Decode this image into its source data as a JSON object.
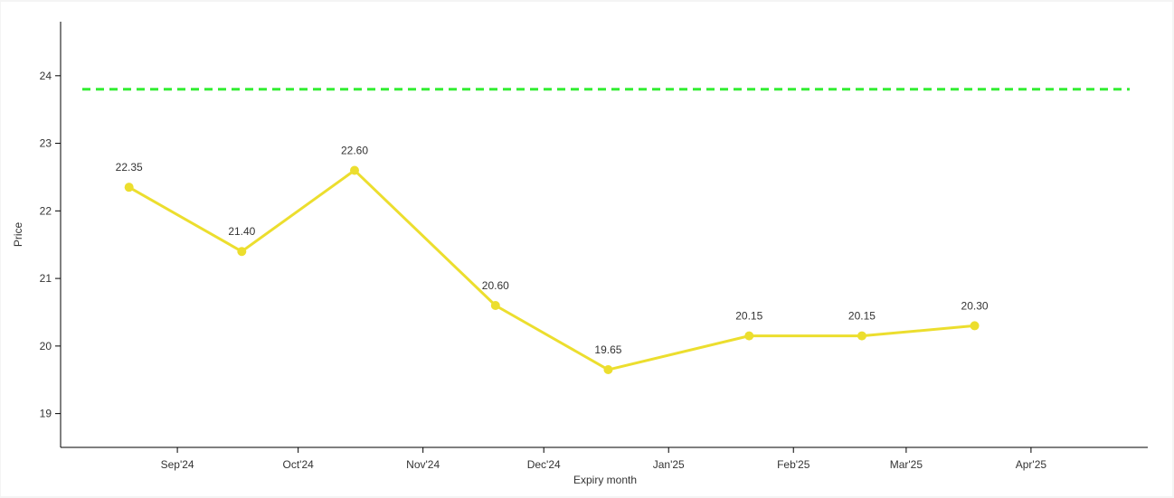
{
  "chart_data": {
    "type": "line",
    "title": "",
    "xlabel": "Expiry month",
    "ylabel": "Price",
    "ylim": [
      18.5,
      24.8
    ],
    "y_ticks": [
      19,
      20,
      21,
      22,
      23,
      24
    ],
    "x_axis": {
      "type": "date",
      "range": [
        "2024-08-03",
        "2025-04-30"
      ],
      "ticks": [
        {
          "date": "2024-09-01",
          "label": "Sep'24"
        },
        {
          "date": "2024-10-01",
          "label": "Oct'24"
        },
        {
          "date": "2024-11-01",
          "label": "Nov'24"
        },
        {
          "date": "2024-12-01",
          "label": "Dec'24"
        },
        {
          "date": "2025-01-01",
          "label": "Jan'25"
        },
        {
          "date": "2025-02-01",
          "label": "Feb'25"
        },
        {
          "date": "2025-03-01",
          "label": "Mar'25"
        },
        {
          "date": "2025-04-01",
          "label": "Apr'25"
        }
      ]
    },
    "series": [
      {
        "color": "#ecde2e",
        "points": [
          {
            "x": "2024-08-20",
            "y": 22.35,
            "label": "22.35"
          },
          {
            "x": "2024-09-17",
            "y": 21.4,
            "label": "21.40"
          },
          {
            "x": "2024-10-15",
            "y": 22.6,
            "label": "22.60"
          },
          {
            "x": "2024-11-19",
            "y": 20.6,
            "label": "20.60"
          },
          {
            "x": "2024-12-17",
            "y": 19.65,
            "label": "19.65"
          },
          {
            "x": "2025-01-21",
            "y": 20.15,
            "label": "20.15"
          },
          {
            "x": "2025-02-18",
            "y": 20.15,
            "label": "20.15"
          },
          {
            "x": "2025-03-18",
            "y": 20.3,
            "label": "20.30"
          }
        ]
      }
    ],
    "reference_line": {
      "y": 23.8,
      "color": "#33ee33",
      "style": "dashed"
    },
    "grid": false
  }
}
